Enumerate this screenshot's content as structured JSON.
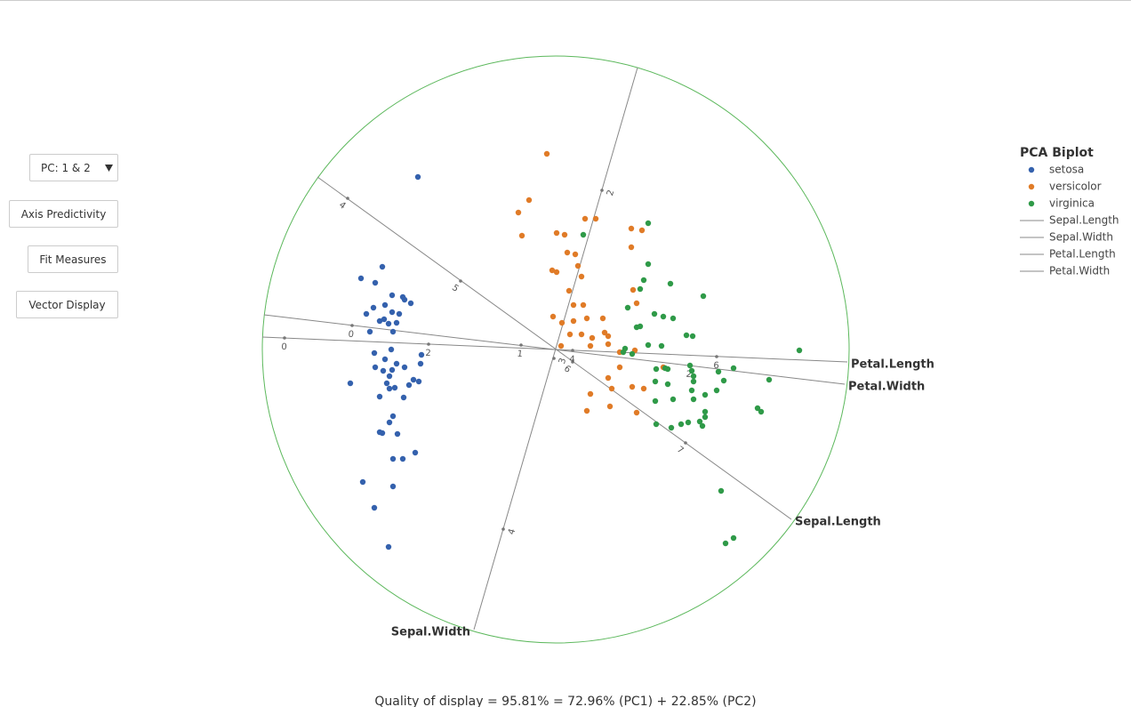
{
  "controls": {
    "pc_select": "PC: 1 & 2",
    "buttons": [
      "Axis Predictivity",
      "Fit Measures",
      "Vector Display"
    ]
  },
  "quality": "Quality of display = 95.81% = 72.96% (PC1) + 22.85% (PC2)",
  "chart_data": {
    "type": "scatter",
    "title": "PCA Biplot",
    "xlim": [
      -3.3,
      3.3
    ],
    "ylim": [
      -3.3,
      3.3
    ],
    "circle_color": "#5cb85c",
    "axis_color": "#888888",
    "series": [
      {
        "name": "setosa",
        "color": "#3461ad",
        "x": [
          -1.55,
          -1.95,
          -2.19,
          -2.03,
          -1.84,
          -1.72,
          -1.7,
          -1.92,
          -1.63,
          -2.05,
          -1.84,
          -1.76,
          -2.13,
          -1.98,
          -1.93,
          -1.88,
          -1.79,
          -2.09,
          -1.83,
          -1.85,
          -2.04,
          -1.51,
          -1.92,
          -1.79,
          -1.7,
          -2.03,
          -1.52,
          -1.94,
          -1.84,
          -1.87,
          -2.31,
          -1.9,
          -1.6,
          -1.54,
          -1.65,
          -1.87,
          -1.81,
          -1.98,
          -1.71,
          -1.83,
          -1.87,
          -1.98,
          -1.95,
          -1.78,
          -1.58,
          -1.83,
          -1.72,
          -2.17,
          -1.83,
          -2.04,
          -1.88
        ],
        "y": [
          1.94,
          0.93,
          0.8,
          0.75,
          0.61,
          0.59,
          0.56,
          0.5,
          0.52,
          0.47,
          0.42,
          0.4,
          0.4,
          0.32,
          0.34,
          0.29,
          0.3,
          0.2,
          0.2,
          0.0,
          -0.04,
          -0.06,
          -0.11,
          -0.16,
          -0.2,
          -0.2,
          -0.16,
          -0.24,
          -0.23,
          -0.3,
          -0.38,
          -0.38,
          -0.34,
          -0.36,
          -0.4,
          -0.44,
          -0.43,
          -0.53,
          -0.54,
          -0.75,
          -0.82,
          -0.93,
          -0.94,
          -0.95,
          -1.16,
          -1.23,
          -1.23,
          -1.49,
          -1.54,
          -1.78,
          -2.22
        ]
      },
      {
        "name": "versicolor",
        "color": "#e07b27",
        "x": [
          -0.1,
          -0.3,
          -0.42,
          -0.38,
          0.01,
          0.1,
          0.33,
          0.45,
          0.85,
          0.97,
          0.13,
          0.22,
          0.85,
          0.25,
          -0.04,
          0.01,
          0.29,
          0.15,
          0.87,
          0.91,
          -0.03,
          0.2,
          0.31,
          0.07,
          0.2,
          0.35,
          0.53,
          0.16,
          0.29,
          0.41,
          0.55,
          0.59,
          0.72,
          0.59,
          0.39,
          0.06,
          0.89,
          0.72,
          1.21,
          0.86,
          0.59,
          0.63,
          0.39,
          0.99,
          0.35,
          0.61,
          0.91
        ],
        "y": [
          2.2,
          1.68,
          1.54,
          1.28,
          1.31,
          1.29,
          1.47,
          1.47,
          1.36,
          1.34,
          1.09,
          1.07,
          1.15,
          0.94,
          0.89,
          0.87,
          0.82,
          0.66,
          0.67,
          0.52,
          0.37,
          0.5,
          0.5,
          0.3,
          0.32,
          0.35,
          0.35,
          0.17,
          0.17,
          0.13,
          0.19,
          0.15,
          -0.03,
          0.06,
          0.04,
          0.04,
          -0.01,
          -0.2,
          -0.2,
          -0.42,
          -0.32,
          -0.44,
          -0.5,
          -0.44,
          -0.69,
          -0.64,
          -0.71
        ]
      },
      {
        "name": "virginica",
        "color": "#2f9a48",
        "x": [
          1.04,
          0.31,
          1.04,
          0.99,
          0.95,
          1.29,
          1.66,
          0.81,
          1.11,
          1.21,
          1.32,
          0.91,
          0.95,
          1.47,
          1.54,
          0.78,
          0.86,
          0.76,
          1.04,
          1.19,
          2.74,
          1.51,
          1.23,
          1.13,
          1.26,
          1.53,
          1.83,
          2.0,
          2.4,
          1.55,
          1.55,
          1.89,
          1.12,
          1.26,
          1.53,
          1.81,
          1.68,
          1.55,
          1.32,
          1.12,
          2.27,
          2.31,
          1.68,
          1.68,
          1.62,
          1.49,
          1.65,
          1.41,
          1.3,
          1.13,
          1.86,
          2.0,
          1.91
        ],
        "y": [
          1.42,
          1.29,
          0.96,
          0.78,
          0.68,
          0.74,
          0.6,
          0.47,
          0.4,
          0.37,
          0.35,
          0.25,
          0.26,
          0.16,
          0.15,
          0.01,
          -0.05,
          -0.03,
          0.05,
          0.04,
          -0.01,
          -0.18,
          -0.21,
          -0.22,
          -0.22,
          -0.24,
          -0.25,
          -0.21,
          -0.34,
          -0.3,
          -0.36,
          -0.35,
          -0.36,
          -0.39,
          -0.46,
          -0.46,
          -0.51,
          -0.56,
          -0.56,
          -0.58,
          -0.66,
          -0.7,
          -0.7,
          -0.76,
          -0.81,
          -0.82,
          -0.86,
          -0.84,
          -0.88,
          -0.84,
          -1.59,
          -2.12,
          -2.18
        ]
      }
    ],
    "axes": [
      {
        "name": "Sepal.Length",
        "start": [
          -2.68,
          1.94
        ],
        "end": [
          2.65,
          -1.91
        ],
        "ticks": [
          {
            "value": 4,
            "x": -2.34,
            "y": 1.7
          },
          {
            "value": 5,
            "x": -1.07,
            "y": 0.77
          },
          {
            "value": 6,
            "x": 0.19,
            "y": -0.14
          },
          {
            "value": 7,
            "x": 1.46,
            "y": -1.05
          }
        ]
      },
      {
        "name": "Sepal.Width",
        "start": [
          0.92,
          3.17
        ],
        "end": [
          -0.92,
          -3.15
        ],
        "ticks": [
          {
            "value": 2,
            "x": 0.52,
            "y": 1.79
          },
          {
            "value": 3,
            "x": -0.02,
            "y": -0.1
          },
          {
            "value": 4,
            "x": -0.59,
            "y": -2.02
          }
        ]
      },
      {
        "name": "Petal.Length",
        "start": [
          -3.3,
          0.14
        ],
        "end": [
          3.28,
          -0.14
        ],
        "ticks": [
          {
            "value": 0,
            "x": -3.05,
            "y": 0.13
          },
          {
            "value": 2,
            "x": -1.43,
            "y": 0.06
          },
          {
            "value": 4,
            "x": 0.19,
            "y": -0.01
          },
          {
            "value": 6,
            "x": 1.81,
            "y": -0.08
          }
        ]
      },
      {
        "name": "Petal.Width",
        "start": [
          -3.28,
          0.39
        ],
        "end": [
          3.25,
          -0.39
        ],
        "ticks": [
          {
            "value": 0,
            "x": -2.29,
            "y": 0.27
          },
          {
            "value": 1,
            "x": -0.39,
            "y": 0.05
          },
          {
            "value": 2,
            "x": 1.51,
            "y": -0.18
          }
        ]
      }
    ]
  }
}
